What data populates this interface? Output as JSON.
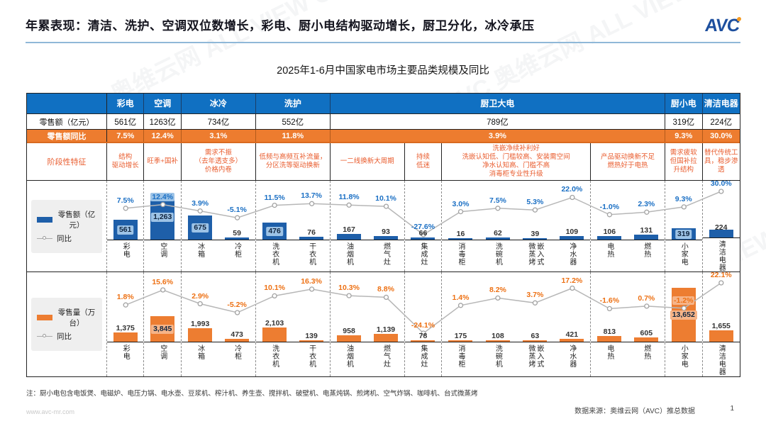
{
  "header": {
    "title": "年累表现：清洁、洗护、空调双位数增长，彩电、厨小电结构驱动增长，厨卫分化，冰冷承压",
    "logo_text": "AVC",
    "subtitle": "2025年1-6月中国家电市场主要品类规模及同比"
  },
  "table": {
    "row_labels": {
      "sales_value": "零售额（亿元）",
      "sales_yoy": "零售额同比",
      "features": "阶段性特征"
    },
    "groups": [
      {
        "label": "彩电",
        "span": 1,
        "value": "561亿",
        "yoy": "7.5%"
      },
      {
        "label": "空调",
        "span": 1,
        "value": "1263亿",
        "yoy": "12.4%"
      },
      {
        "label": "冰冷",
        "span": 2,
        "value": "734亿",
        "yoy": "3.1%"
      },
      {
        "label": "洗护",
        "span": 2,
        "value": "552亿",
        "yoy": "11.8%"
      },
      {
        "label": "厨卫大电",
        "span": 9,
        "value": "789亿",
        "yoy": "3.9%"
      },
      {
        "label": "厨小电",
        "span": 1,
        "value": "319亿",
        "yoy": "9.3%"
      },
      {
        "label": "清洁电器",
        "span": 1,
        "value": "224亿",
        "yoy": "30.0%"
      }
    ],
    "features": [
      {
        "span": 1,
        "lines": [
          "结构",
          "驱动增长"
        ]
      },
      {
        "span": 1,
        "lines": [
          "旺季+国补"
        ]
      },
      {
        "span": 2,
        "lines": [
          "需求不振",
          "（去年透支多）",
          "价格内卷"
        ]
      },
      {
        "span": 2,
        "lines": [
          "低频与高频互补流量，",
          "分区洗等驱动换新"
        ]
      },
      {
        "span": 2,
        "lines": [
          "一二线换新大周期"
        ]
      },
      {
        "span": 1,
        "lines": [
          "持续",
          "低迷"
        ]
      },
      {
        "span": 4,
        "lines": [
          "洗嵌净续补利好",
          "洗嵌认知低、门槛较高、安装需空间",
          "净水认知高、门槛不高",
          "消毒柜专业性升级"
        ]
      },
      {
        "span": 2,
        "lines": [
          "产品驱动换新不足",
          "燃热好于电热"
        ]
      },
      {
        "span": 1,
        "lines": [
          "需求疲软但国补拉升结构"
        ]
      },
      {
        "span": 1,
        "lines": [
          "替代传统工具，稳步渗透"
        ]
      }
    ]
  },
  "chart_data": [
    {
      "type": "bar+line",
      "legend_bar": "零售额（亿元）",
      "legend_line": "同比",
      "categories": [
        "彩电",
        "空调",
        "冰箱",
        "冷柜",
        "洗衣机",
        "干衣机",
        "油烟机",
        "燃气灶",
        "集成灶",
        "消毒柜",
        "洗碗机",
        "微蒸烤嵌入式",
        "净水器",
        "电热",
        "燃热",
        "小家电",
        "清洁电器"
      ],
      "category_display": [
        "彩电",
        "空调",
        "冰箱",
        "冷柜",
        "洗衣机",
        "干衣机",
        "油烟机",
        "燃气灶",
        "集成灶",
        "消毒柜",
        "洗碗机",
        "微蒸烤|嵌入式",
        "净水器",
        "电热",
        "燃热",
        "小家电",
        "清洁电器"
      ],
      "values": [
        561,
        1263,
        675,
        59,
        476,
        76,
        167,
        93,
        66,
        16,
        62,
        39,
        109,
        106,
        131,
        319,
        224
      ],
      "value_labels": [
        "561",
        "1,263",
        "675",
        "59",
        "476",
        "76",
        "167",
        "93",
        "66",
        "16",
        "62",
        "39",
        "109",
        "106",
        "131",
        "319",
        "224"
      ],
      "yoy_pct": [
        7.5,
        12.4,
        3.9,
        -5.1,
        11.5,
        13.7,
        11.8,
        10.1,
        -27.6,
        3.0,
        7.5,
        5.3,
        22.0,
        -1.0,
        2.3,
        9.3,
        30.0
      ],
      "yoy_labels": [
        "7.5%",
        "12.4%",
        "3.9%",
        "-5.1%",
        "11.5%",
        "13.7%",
        "11.8%",
        "10.1%",
        "-27.6%",
        "3.0%",
        "7.5%",
        "5.3%",
        "22.0%",
        "-1.0%",
        "2.3%",
        "9.3%",
        "30.0%"
      ],
      "group_ends": [
        0,
        1,
        3,
        5,
        7,
        8,
        12,
        14,
        15
      ],
      "colors": {
        "bar": "#1e5fa9",
        "chip": "#9dc3e6",
        "pct": "#1a6fc4",
        "line": "#b7b7b7"
      }
    },
    {
      "type": "bar+line",
      "legend_bar": "零售量（万台）",
      "legend_line": "同比",
      "categories": [
        "彩电",
        "空调",
        "冰箱",
        "冷柜",
        "洗衣机",
        "干衣机",
        "油烟机",
        "燃气灶",
        "集成灶",
        "消毒柜",
        "洗碗机",
        "微蒸烤嵌入式",
        "净水器",
        "电热",
        "燃热",
        "小家电",
        "清洁电器"
      ],
      "category_display": [
        "彩电",
        "空调",
        "冰箱",
        "冷柜",
        "洗衣机",
        "干衣机",
        "油烟机",
        "燃气灶",
        "集成灶",
        "消毒柜",
        "洗碗机",
        "微蒸烤|嵌入式",
        "净水器",
        "电热",
        "燃热",
        "小家电",
        "清洁电器"
      ],
      "values": [
        1375,
        3845,
        1993,
        473,
        2103,
        139,
        958,
        1139,
        78,
        175,
        108,
        63,
        421,
        813,
        605,
        13652,
        1655
      ],
      "value_labels": [
        "1,375",
        "3,845",
        "1,993",
        "473",
        "2,103",
        "139",
        "958",
        "1,139",
        "78",
        "175",
        "108",
        "63",
        "421",
        "813",
        "605",
        "13,652",
        "1,655"
      ],
      "yoy_pct": [
        1.8,
        15.6,
        2.9,
        -5.2,
        10.1,
        16.3,
        10.3,
        8.8,
        -24.1,
        1.4,
        8.2,
        3.7,
        17.2,
        -1.6,
        0.7,
        -1.2,
        22.1
      ],
      "yoy_labels": [
        "1.8%",
        "15.6%",
        "2.9%",
        "-5.2%",
        "10.1%",
        "16.3%",
        "10.3%",
        "8.8%",
        "-24.1%",
        "1.4%",
        "8.2%",
        "3.7%",
        "17.2%",
        "-1.6%",
        "0.7%",
        "-1.2%",
        "22.1%"
      ],
      "group_ends": [
        0,
        1,
        3,
        5,
        7,
        8,
        12,
        14,
        15
      ],
      "colors": {
        "bar": "#ed7d31",
        "chip": "#f6b488",
        "pct": "#ed7013",
        "line": "#b7b7b7"
      }
    }
  ],
  "note": "注：厨小电包含电饭煲、电磁炉、电压力锅、电水壶、豆浆机、榨汁机、养生壶、搅拌机、破壁机、电蒸炖锅、煎烤机、空气炸锅、咖啡机、台式微蒸烤",
  "footer": {
    "url": "www.avc-mr.com",
    "source": "数据来源：奥维云网（AVC）推总数据",
    "page": "1"
  },
  "decoration": {
    "watermark": "AVC 奥维云网 ALL VIEW CLOUD"
  }
}
